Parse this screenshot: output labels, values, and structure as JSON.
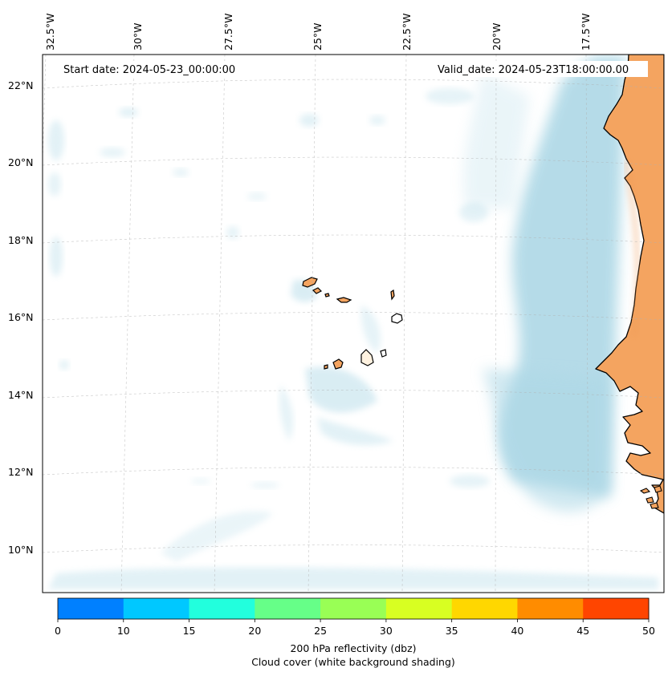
{
  "map": {
    "start_date": "Start date: 2024-05-23_00:00:00",
    "valid_date": "Valid_date: 2024-05-23T18:00:00.00",
    "lon_labels": [
      "32.5°W",
      "30°W",
      "27.5°W",
      "25°W",
      "22.5°W",
      "20°W",
      "17.5°W"
    ],
    "lat_labels": [
      "22°N",
      "20°N",
      "18°N",
      "16°N",
      "14°N",
      "12°N",
      "10°N"
    ],
    "land_color": "#f4a460",
    "cloud_color": "#add8e6",
    "coastline_color": "#000000"
  },
  "colorbar": {
    "title": "200 hPa reflectivity (dbz)",
    "subtitle": "Cloud cover (white background shading)",
    "ticks": [
      "0",
      "10",
      "15",
      "20",
      "25",
      "30",
      "35",
      "40",
      "45",
      "50"
    ],
    "colors": [
      "#0080ff",
      "#00c8ff",
      "#22ffdd",
      "#66ff88",
      "#99ff55",
      "#d8ff22",
      "#ffd700",
      "#ff8c00",
      "#ff4500"
    ]
  }
}
